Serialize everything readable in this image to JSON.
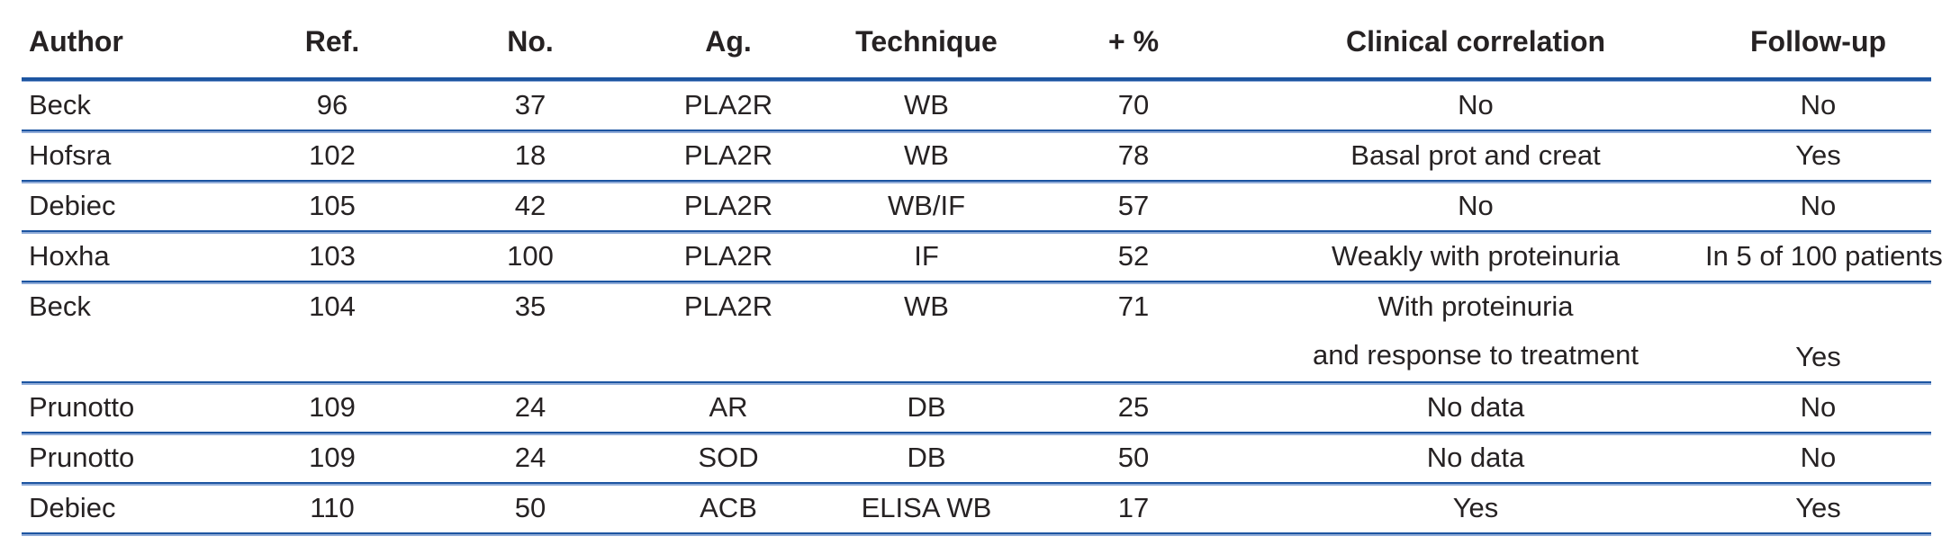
{
  "colors": {
    "rule_dark": "#1d55a1",
    "rule_light": "#8fabd8",
    "text": "#262223",
    "background": "#ffffff"
  },
  "table": {
    "columns": [
      "Author",
      "Ref.",
      "No.",
      "Ag.",
      "Technique",
      "+ %",
      "Clinical correlation",
      "Follow-up"
    ],
    "rows": [
      {
        "author": "Beck",
        "ref": "96",
        "no": "37",
        "ag": "PLA2R",
        "technique": "WB",
        "pos_pct": "70",
        "clinical_correlation": "No",
        "follow_up": "No"
      },
      {
        "author": "Hofsra",
        "ref": "102",
        "no": "18",
        "ag": "PLA2R",
        "technique": "WB",
        "pos_pct": "78",
        "clinical_correlation": "Basal prot and creat",
        "follow_up": "Yes"
      },
      {
        "author": "Debiec",
        "ref": "105",
        "no": "42",
        "ag": "PLA2R",
        "technique": "WB/IF",
        "pos_pct": "57",
        "clinical_correlation": "No",
        "follow_up": "No"
      },
      {
        "author": "Hoxha",
        "ref": "103",
        "no": "100",
        "ag": "PLA2R",
        "technique": "IF",
        "pos_pct": "52",
        "clinical_correlation": "Weakly with proteinuria",
        "follow_up": "In 5 of 100 patients"
      },
      {
        "author": "Beck",
        "ref": "104",
        "no": "35",
        "ag": "PLA2R",
        "technique": "WB",
        "pos_pct": "71",
        "clinical_correlation": "With proteinuria\nand response to treatment",
        "follow_up": "Yes"
      },
      {
        "author": "Prunotto",
        "ref": "109",
        "no": "24",
        "ag": "AR",
        "technique": "DB",
        "pos_pct": "25",
        "clinical_correlation": "No data",
        "follow_up": "No"
      },
      {
        "author": "Prunotto",
        "ref": "109",
        "no": "24",
        "ag": "SOD",
        "technique": "DB",
        "pos_pct": "50",
        "clinical_correlation": "No data",
        "follow_up": "No"
      },
      {
        "author": "Debiec",
        "ref": "110",
        "no": "50",
        "ag": "ACB",
        "technique": "ELISA WB",
        "pos_pct": "17",
        "clinical_correlation": "Yes",
        "follow_up": "Yes"
      }
    ]
  }
}
